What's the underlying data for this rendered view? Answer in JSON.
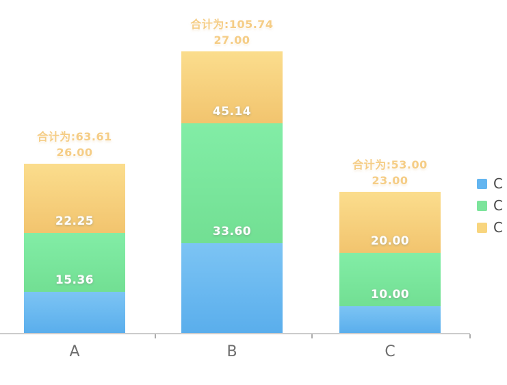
{
  "chart_data": {
    "type": "bar",
    "stacked": true,
    "title": "",
    "xlabel": "",
    "ylabel": "",
    "categories": [
      "A",
      "B",
      "C"
    ],
    "series": [
      {
        "name": "C",
        "color": "#63b5f0",
        "gradient_top": "#7cc4f4",
        "gradient_bottom": "#5aaeec",
        "values": [
          15.36,
          33.6,
          10.0
        ]
      },
      {
        "name": "C",
        "color": "#7ce49b",
        "gradient_top": "#82eda6",
        "gradient_bottom": "#72df93",
        "values": [
          22.25,
          45.14,
          20.0
        ]
      },
      {
        "name": "C",
        "color": "#f8d57e",
        "gradient_top": "#fbdd8d",
        "gradient_bottom": "#f2c46e",
        "values": [
          26.0,
          27.0,
          23.0
        ]
      }
    ],
    "totals": [
      63.61,
      105.74,
      53.0
    ],
    "total_label_prefix": "合计为:",
    "value_decimals": 2,
    "ylim": [
      0,
      125
    ],
    "grid": false,
    "legend_position": "right",
    "label_colors": {
      "inside": "#ffffff",
      "total": "#f5cd86"
    },
    "axis_colors": {
      "line": "#cccccc",
      "tick": "#ababab",
      "category_label": "#6e6e6e"
    }
  },
  "legend": {
    "items": [
      {
        "label": "C",
        "color": "#63b5f0"
      },
      {
        "label": "C",
        "color": "#7ce49b"
      },
      {
        "label": "C",
        "color": "#f8d57e"
      }
    ]
  }
}
